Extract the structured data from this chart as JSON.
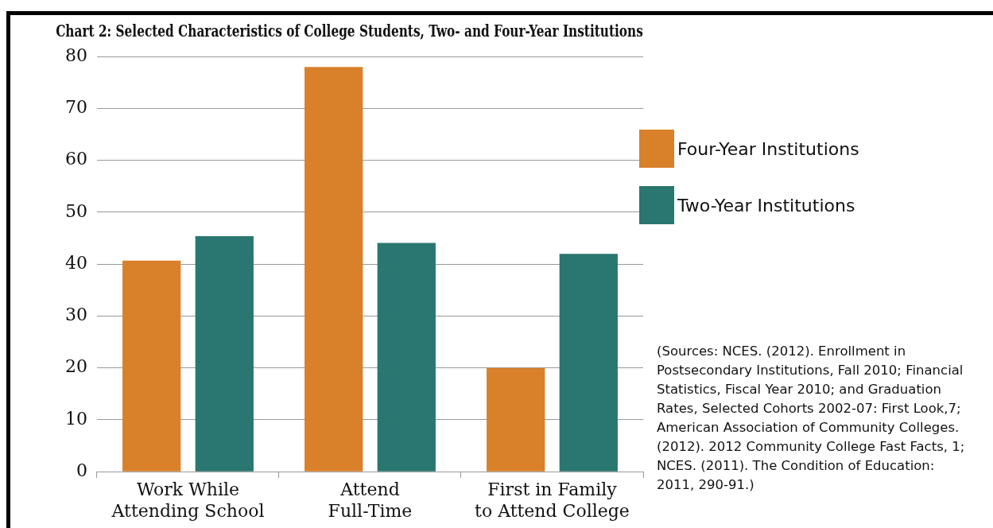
{
  "chart_data": {
    "type": "bar",
    "title": "Chart 2: Selected Characteristics of College Students, Two- and Four-Year Institutions",
    "categories": [
      "Work While Attending School",
      "Attend Full-Time",
      "First in Family to Attend College"
    ],
    "series": [
      {
        "name": "Four-Year Institutions",
        "color": "#d9802b",
        "values": [
          40.7,
          78.0,
          20.0
        ]
      },
      {
        "name": "Two-Year Institutions",
        "color": "#2a7670",
        "values": [
          45.4,
          44.1,
          42.0
        ]
      }
    ],
    "ylim": [
      0,
      80
    ],
    "yticks": [
      0,
      10,
      20,
      30,
      40,
      50,
      60,
      70,
      80
    ],
    "grid": "y",
    "legend": "right",
    "annotations": [
      "(Sources: NCES. (2012). Enrollment in Postsecondary Institutions, Fall 2010; Financial Statistics, Fiscal Year 2010; and Graduation Rates, Selected Cohorts 2002-07: First Look,7; American Association of Community Colleges. (2012). 2012 Community College Fast Facts, 1; NCES. (2011). The Condition of Education: 2011, 290-91.)"
    ]
  }
}
